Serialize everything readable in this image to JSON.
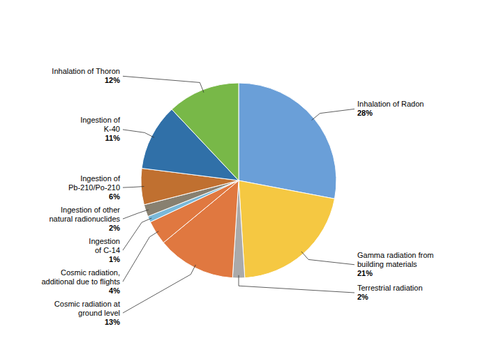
{
  "chart_data": {
    "type": "pie",
    "categories": [
      "Inhalation of Radon",
      "Gamma radiation from\nbuilding materials",
      "Terrestrial radiation",
      "Cosmic radiation at\nground level",
      "Cosmic radiation,\nadditional due to flights",
      "Ingestion\nof C-14",
      "Ingestion of other\nnatural radionuclides",
      "Ingestion of\nPb-210/Po-210",
      "Ingestion of\nK-40",
      "Inhalation of Thoron"
    ],
    "values": [
      28,
      21,
      2,
      13,
      4,
      1,
      2,
      6,
      11,
      12
    ],
    "value_labels": [
      "28%",
      "21%",
      "2%",
      "13%",
      "4%",
      "1%",
      "2%",
      "6%",
      "11%",
      "12%"
    ],
    "colors": [
      "#6a9fd8",
      "#f5c842",
      "#aaaaaa",
      "#e07840",
      "#e07840",
      "#7ab8d8",
      "#888070",
      "#c07030",
      "#3070a8",
      "#78b848"
    ],
    "data_labels": true
  }
}
